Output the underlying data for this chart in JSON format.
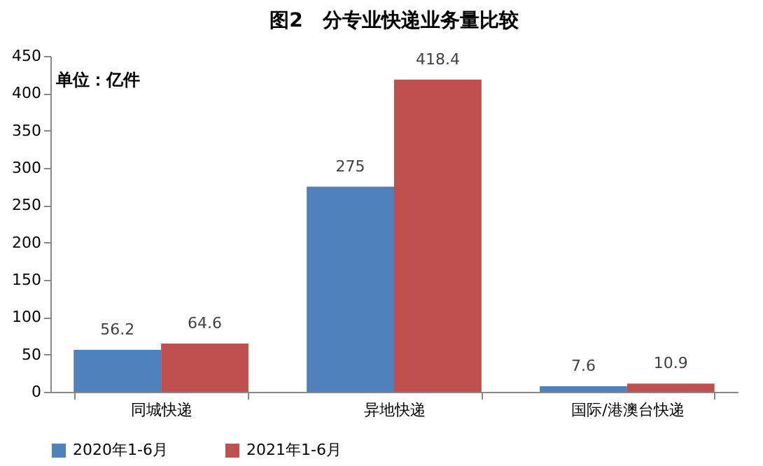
{
  "chart_data": {
    "type": "bar",
    "title": "图2　分专业快递业务量比较",
    "annotations": [
      "单位：亿件"
    ],
    "categories": [
      "同城快递",
      "异地快递",
      "国际/港澳台快递"
    ],
    "series": [
      {
        "name": "2020年1-6月",
        "color": "#4f81bd",
        "values": [
          56.2,
          275,
          7.6
        ]
      },
      {
        "name": "2021年1-6月",
        "color": "#c0504d",
        "values": [
          64.6,
          418.4,
          10.9
        ]
      }
    ],
    "ylim": [
      0,
      450
    ],
    "yticks": [
      0,
      50,
      100,
      150,
      200,
      250,
      300,
      350,
      400,
      450
    ],
    "grid": false,
    "legend": "bottom",
    "data_labels": true
  }
}
